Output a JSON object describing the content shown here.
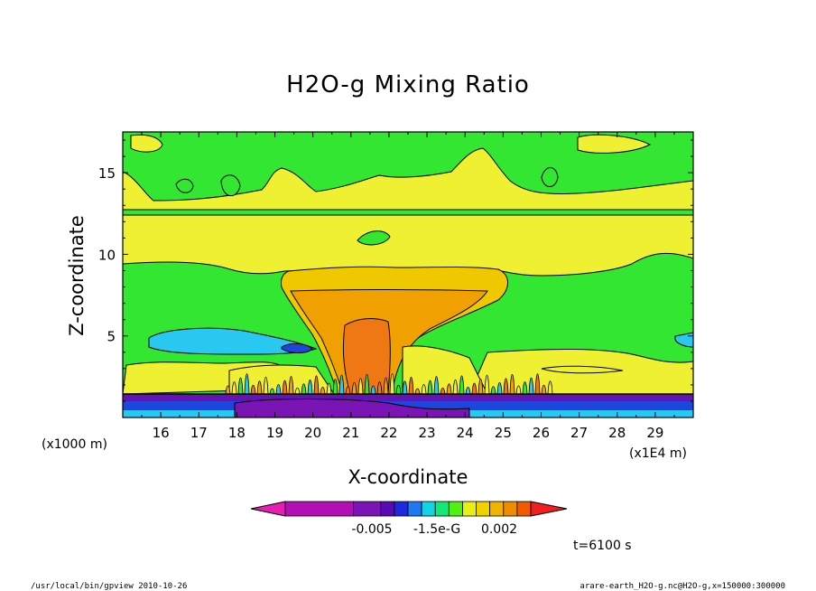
{
  "chart_data": {
    "type": "heatmap",
    "title": "H2O-g Mixing Ratio",
    "xlabel": "X-coordinate",
    "ylabel": "Z-coordinate",
    "x_unit_left": "(x1000 m)",
    "x_unit_right": "(x1E4 m)",
    "xlim": [
      15.0,
      30.0
    ],
    "ylim": [
      0.0,
      17.5
    ],
    "x_ticks": [
      16,
      17,
      18,
      19,
      20,
      21,
      22,
      23,
      24,
      25,
      26,
      27,
      28,
      29
    ],
    "y_ticks": [
      5,
      10,
      15
    ],
    "colorbar": {
      "colors": [
        "#e61eb4",
        "#b40fb4",
        "#7a14b4",
        "#5a0ab4",
        "#1e28dc",
        "#1e78f0",
        "#14d2e6",
        "#14e678",
        "#50f014",
        "#e6f014",
        "#f0d200",
        "#f0b400",
        "#f08c00",
        "#f05a00",
        "#f01e1e"
      ],
      "tick_labels": [
        "-0.005",
        "-1.5e-G",
        "0.002"
      ]
    },
    "colors": {
      "green": "#32e632",
      "yellow": "#f0f032",
      "light_orange": "#f0c800",
      "orange": "#f0a000",
      "dark_orange": "#f07814",
      "cyan": "#28c8f0",
      "blue": "#1e46dc",
      "purple": "#6414b4"
    },
    "time_label": "t=6100 s",
    "footer_left": "/usr/local/bin/gpview   2010-10-26",
    "footer_right": "arare-earth_H2O-g.nc@H2O-g,x=150000:300000"
  }
}
